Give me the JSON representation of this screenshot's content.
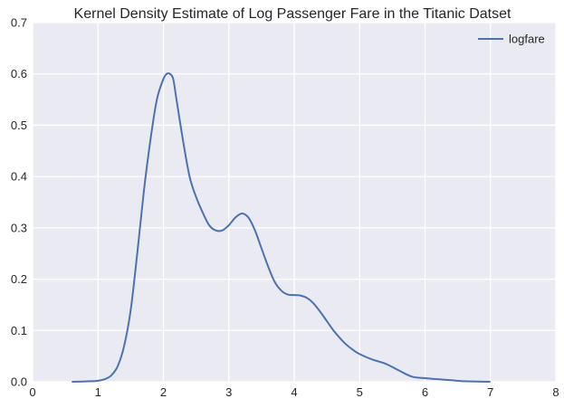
{
  "chart_data": {
    "type": "line",
    "title": "Kernel Density Estimate of Log Passenger Fare in the Titanic Datset",
    "xlabel": "",
    "ylabel": "",
    "xlim": [
      0,
      8
    ],
    "ylim": [
      0,
      0.7
    ],
    "xticks": [
      "0",
      "1",
      "2",
      "3",
      "4",
      "5",
      "6",
      "7",
      "8"
    ],
    "yticks": [
      "0.0",
      "0.1",
      "0.2",
      "0.3",
      "0.4",
      "0.5",
      "0.6",
      "0.7"
    ],
    "grid": true,
    "legend_position": "top-right",
    "series": [
      {
        "name": "logfare",
        "color": "#4c72b0",
        "x": [
          0.6,
          0.9,
          1.0,
          1.1,
          1.2,
          1.3,
          1.4,
          1.5,
          1.6,
          1.7,
          1.8,
          1.9,
          2.0,
          2.05,
          2.1,
          2.15,
          2.2,
          2.3,
          2.4,
          2.5,
          2.6,
          2.7,
          2.8,
          2.9,
          3.0,
          3.1,
          3.2,
          3.3,
          3.4,
          3.5,
          3.6,
          3.7,
          3.8,
          3.9,
          4.0,
          4.1,
          4.2,
          4.3,
          4.4,
          4.5,
          4.6,
          4.7,
          4.8,
          4.9,
          5.0,
          5.2,
          5.4,
          5.6,
          5.8,
          6.0,
          6.2,
          6.4,
          6.6,
          6.8,
          7.0
        ],
        "y": [
          0.0,
          0.001,
          0.002,
          0.005,
          0.012,
          0.03,
          0.07,
          0.14,
          0.25,
          0.37,
          0.47,
          0.55,
          0.59,
          0.6,
          0.6,
          0.59,
          0.55,
          0.47,
          0.4,
          0.36,
          0.33,
          0.305,
          0.295,
          0.295,
          0.305,
          0.32,
          0.328,
          0.32,
          0.295,
          0.26,
          0.225,
          0.195,
          0.178,
          0.17,
          0.169,
          0.168,
          0.163,
          0.152,
          0.136,
          0.118,
          0.1,
          0.085,
          0.072,
          0.062,
          0.054,
          0.043,
          0.035,
          0.022,
          0.01,
          0.007,
          0.005,
          0.003,
          0.001,
          0.0005,
          0.0
        ]
      }
    ]
  }
}
